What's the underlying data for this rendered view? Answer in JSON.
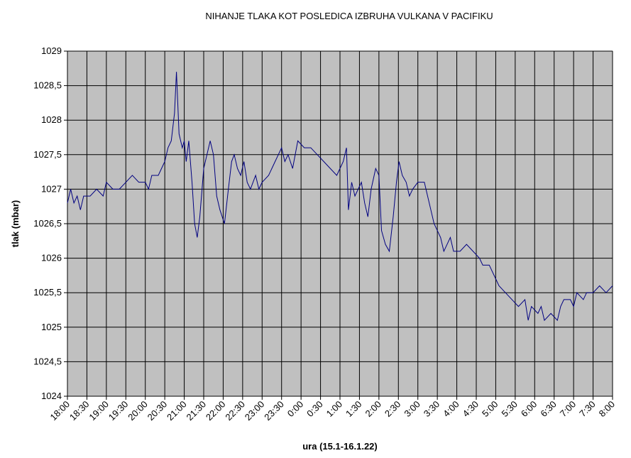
{
  "chart_data": {
    "type": "line",
    "title": "NIHANJE TLAKA KOT POSLEDICA IZBRUHA VULKANA V PACIFIKU",
    "x_label": "ura (15.1-16.1.22)",
    "y_label": "tlak (mbar)",
    "xlim": [
      "18:00",
      "8:00"
    ],
    "xticks": [
      "18:00",
      "18:30",
      "19:00",
      "19:30",
      "20:00",
      "20:30",
      "21:00",
      "21:30",
      "22:00",
      "22:30",
      "23:00",
      "23:30",
      "0:00",
      "0:30",
      "1:00",
      "1:30",
      "2:00",
      "2:30",
      "3:00",
      "3:30",
      "4:00",
      "4:30",
      "5:00",
      "5:30",
      "6:00",
      "6:30",
      "7:00",
      "7:30",
      "8:00"
    ],
    "ylim": [
      1024,
      1029
    ],
    "yticks": [
      1024,
      {
        "value": 1024.5,
        "label": "1024,5"
      },
      1025,
      {
        "value": 1025.5,
        "label": "1025,5"
      },
      1026,
      {
        "value": 1026.5,
        "label": "1026,5"
      },
      1027,
      {
        "value": 1027.5,
        "label": "1027,5"
      },
      1028,
      {
        "value": 1028.5,
        "label": "1028,5"
      },
      1029
    ],
    "grid": true,
    "background": "#c0c0c0",
    "x": [
      "18:00",
      "18:05",
      "18:10",
      "18:15",
      "18:20",
      "18:25",
      "18:35",
      "18:45",
      "18:55",
      "19:00",
      "19:10",
      "19:20",
      "19:30",
      "19:40",
      "19:50",
      "20:00",
      "20:05",
      "20:10",
      "20:20",
      "20:25",
      "20:30",
      "20:35",
      "20:40",
      "20:45",
      "20:48",
      "20:52",
      "20:57",
      "21:00",
      "21:03",
      "21:07",
      "21:12",
      "21:16",
      "21:20",
      "21:24",
      "21:30",
      "21:35",
      "21:40",
      "21:45",
      "21:50",
      "21:55",
      "22:02",
      "22:08",
      "22:13",
      "22:17",
      "22:22",
      "22:27",
      "22:32",
      "22:37",
      "22:42",
      "22:50",
      "22:55",
      "23:00",
      "23:10",
      "23:15",
      "23:20",
      "23:25",
      "23:30",
      "23:35",
      "23:40",
      "23:47",
      "23:55",
      "0:05",
      "0:15",
      "0:25",
      "0:35",
      "0:45",
      "0:55",
      "1:00",
      "1:05",
      "1:10",
      "1:13",
      "1:18",
      "1:23",
      "1:28",
      "1:33",
      "1:38",
      "1:43",
      "1:48",
      "1:55",
      "2:00",
      "2:04",
      "2:10",
      "2:16",
      "2:22",
      "2:27",
      "2:31",
      "2:36",
      "2:42",
      "2:47",
      "2:52",
      "3:00",
      "3:10",
      "3:15",
      "3:20",
      "3:25",
      "3:30",
      "3:35",
      "3:40",
      "3:45",
      "3:50",
      "3:55",
      "4:05",
      "4:15",
      "4:25",
      "4:35",
      "4:40",
      "4:50",
      "5:00",
      "5:05",
      "5:15",
      "5:25",
      "5:35",
      "5:45",
      "5:50",
      "5:55",
      "6:05",
      "6:10",
      "6:15",
      "6:25",
      "6:35",
      "6:40",
      "6:45",
      "6:55",
      "7:00",
      "7:05",
      "7:15",
      "7:20",
      "7:30",
      "7:40",
      "7:50",
      "8:00"
    ],
    "series": [
      {
        "color": "#000080",
        "values": [
          1026.8,
          1027.0,
          1026.8,
          1026.9,
          1026.7,
          1026.9,
          1026.9,
          1027.0,
          1026.9,
          1027.1,
          1027.0,
          1027.0,
          1027.1,
          1027.2,
          1027.1,
          1027.1,
          1027.0,
          1027.2,
          1027.2,
          1027.3,
          1027.4,
          1027.6,
          1027.7,
          1028.1,
          1028.7,
          1027.8,
          1027.6,
          1027.7,
          1027.4,
          1027.7,
          1027.1,
          1026.5,
          1026.3,
          1026.6,
          1027.3,
          1027.5,
          1027.7,
          1027.5,
          1026.9,
          1026.7,
          1026.5,
          1027.0,
          1027.4,
          1027.5,
          1027.3,
          1027.2,
          1027.4,
          1027.1,
          1027.0,
          1027.2,
          1027.0,
          1027.1,
          1027.2,
          1027.3,
          1027.4,
          1027.5,
          1027.6,
          1027.4,
          1027.5,
          1027.3,
          1027.7,
          1027.6,
          1027.6,
          1027.5,
          1027.4,
          1027.3,
          1027.2,
          1027.3,
          1027.4,
          1027.6,
          1026.7,
          1027.1,
          1026.9,
          1027.0,
          1027.1,
          1026.8,
          1026.6,
          1027.0,
          1027.3,
          1027.2,
          1026.4,
          1026.2,
          1026.1,
          1026.6,
          1027.1,
          1027.4,
          1027.2,
          1027.1,
          1026.9,
          1027.0,
          1027.1,
          1027.1,
          1026.9,
          1026.7,
          1026.5,
          1026.4,
          1026.3,
          1026.1,
          1026.2,
          1026.3,
          1026.1,
          1026.1,
          1026.2,
          1026.1,
          1026.0,
          1025.9,
          1025.9,
          1025.7,
          1025.6,
          1025.5,
          1025.4,
          1025.3,
          1025.4,
          1025.1,
          1025.3,
          1025.2,
          1025.3,
          1025.1,
          1025.2,
          1025.1,
          1025.3,
          1025.4,
          1025.4,
          1025.3,
          1025.5,
          1025.4,
          1025.5,
          1025.5,
          1025.6,
          1025.5,
          1025.6
        ]
      }
    ]
  }
}
